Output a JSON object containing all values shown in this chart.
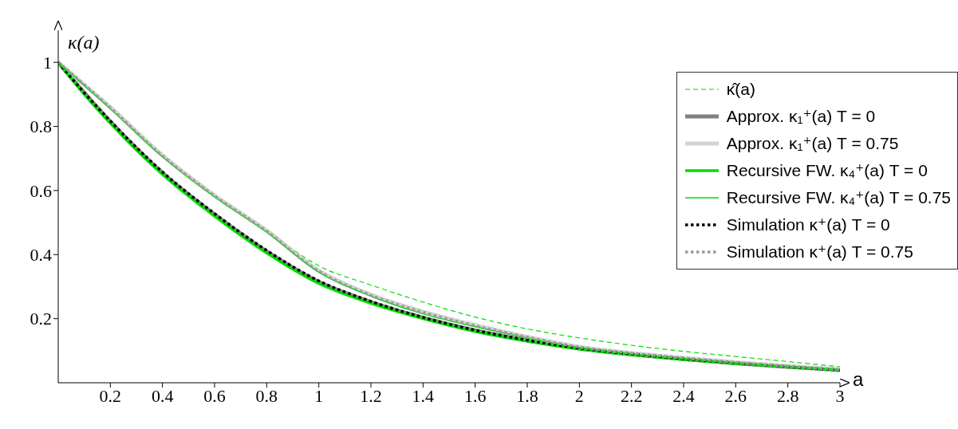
{
  "chart_data": {
    "type": "line",
    "xlabel": "a",
    "ylabel": "κ(a)",
    "x": [
      0,
      0.1,
      0.2,
      0.4,
      0.6,
      0.8,
      1,
      1.2,
      1.4,
      1.6,
      1.8,
      2,
      2.2,
      2.4,
      2.6,
      2.8,
      3
    ],
    "series": [
      {
        "name": "κ̂(a)",
        "color": "#00dd00",
        "line_style": "dashed",
        "values": [
          1,
          0.93,
          0.86,
          0.71,
          0.585,
          0.475,
          0.365,
          0.305,
          0.252,
          0.205,
          0.168,
          0.14,
          0.117,
          0.098,
          0.082,
          0.066,
          0.05
        ]
      },
      {
        "name": "Approx. κ₁⁺(a) T = 0",
        "color": "#808080",
        "line_style": "solid",
        "values": [
          1,
          0.905,
          0.815,
          0.655,
          0.525,
          0.41,
          0.315,
          0.252,
          0.203,
          0.163,
          0.132,
          0.107,
          0.089,
          0.074,
          0.061,
          0.05,
          0.04
        ]
      },
      {
        "name": "Approx. κ₁⁺(a) T = 0.75",
        "color": "#d3d3d3",
        "line_style": "solid",
        "values": [
          1,
          0.93,
          0.86,
          0.71,
          0.585,
          0.475,
          0.35,
          0.275,
          0.222,
          0.18,
          0.143,
          0.112,
          0.093,
          0.078,
          0.064,
          0.052,
          0.042
        ]
      },
      {
        "name": "Recursive FW. κ₄⁺(a) T = 0",
        "color": "#00dd00",
        "line_style": "solid",
        "values": [
          1,
          0.9,
          0.81,
          0.65,
          0.52,
          0.405,
          0.31,
          0.248,
          0.2,
          0.16,
          0.13,
          0.105,
          0.087,
          0.072,
          0.06,
          0.049,
          0.039
        ]
      },
      {
        "name": "Recursive FW. κ₄⁺(a) T = 0.75",
        "color": "#00dd00",
        "line_style": "solid",
        "values": [
          1,
          0.928,
          0.855,
          0.705,
          0.58,
          0.47,
          0.345,
          0.27,
          0.215,
          0.175,
          0.14,
          0.11,
          0.091,
          0.076,
          0.063,
          0.051,
          0.041
        ]
      },
      {
        "name": "Simulation κ⁺(a) T = 0",
        "color": "#000000",
        "line_style": "dotted",
        "values": [
          1,
          0.905,
          0.817,
          0.658,
          0.528,
          0.413,
          0.318,
          0.254,
          0.204,
          0.164,
          0.133,
          0.108,
          0.09,
          0.075,
          0.062,
          0.05,
          0.04
        ]
      },
      {
        "name": "Simulation κ⁺(a) T = 0.75",
        "color": "#999999",
        "line_style": "dotted",
        "values": [
          1,
          0.93,
          0.858,
          0.708,
          0.583,
          0.473,
          0.348,
          0.273,
          0.22,
          0.178,
          0.142,
          0.111,
          0.092,
          0.077,
          0.063,
          0.051,
          0.041
        ]
      }
    ],
    "xlim": [
      0,
      3
    ],
    "ylim": [
      0,
      1.1
    ],
    "xticks": [
      0.2,
      0.4,
      0.6,
      0.8,
      1,
      1.2,
      1.4,
      1.6,
      1.8,
      2,
      2.2,
      2.4,
      2.6,
      2.8,
      3
    ],
    "yticks": [
      0.2,
      0.4,
      0.6,
      0.8,
      1
    ],
    "grid": false,
    "legend": "top right",
    "marker": "none"
  }
}
